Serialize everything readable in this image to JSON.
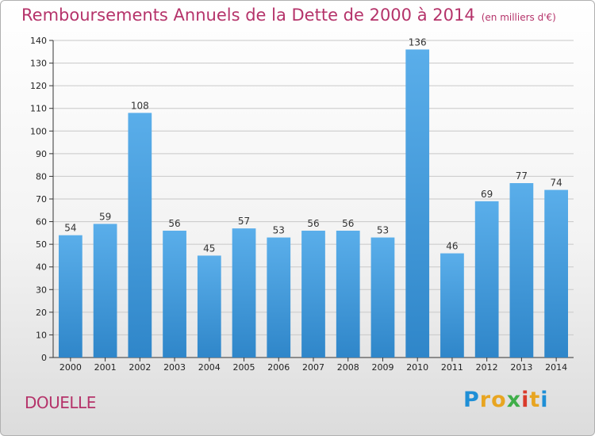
{
  "chart_data": {
    "type": "bar",
    "title": "Remboursements Annuels de la Dette de 2000 à 2014",
    "subtitle": "(en milliers d'€)",
    "xlabel": "",
    "ylabel": "",
    "categories": [
      "2000",
      "2001",
      "2002",
      "2003",
      "2004",
      "2005",
      "2006",
      "2007",
      "2008",
      "2009",
      "2010",
      "2011",
      "2012",
      "2013",
      "2014"
    ],
    "values": [
      54,
      59,
      108,
      56,
      45,
      57,
      53,
      56,
      56,
      53,
      136,
      46,
      69,
      77,
      74
    ],
    "ylim": [
      0,
      140
    ],
    "yticks": [
      0,
      10,
      20,
      30,
      40,
      50,
      60,
      70,
      80,
      90,
      100,
      110,
      120,
      130,
      140
    ],
    "grid": true,
    "bar_color": "#4a9fe0",
    "axis_color": "#333333"
  },
  "commune": "DOUELLE",
  "brand": {
    "letters": [
      "P",
      "r",
      "o",
      "x",
      "i",
      "t",
      "i"
    ],
    "colors": [
      "#1f8fd6",
      "#e8a521",
      "#e8a521",
      "#3fae49",
      "#d93a2b",
      "#e8a521",
      "#1f8fd6"
    ]
  },
  "colors": {
    "title": "#b5336a",
    "commune": "#b5336a",
    "grid": "#c8c8c8"
  }
}
